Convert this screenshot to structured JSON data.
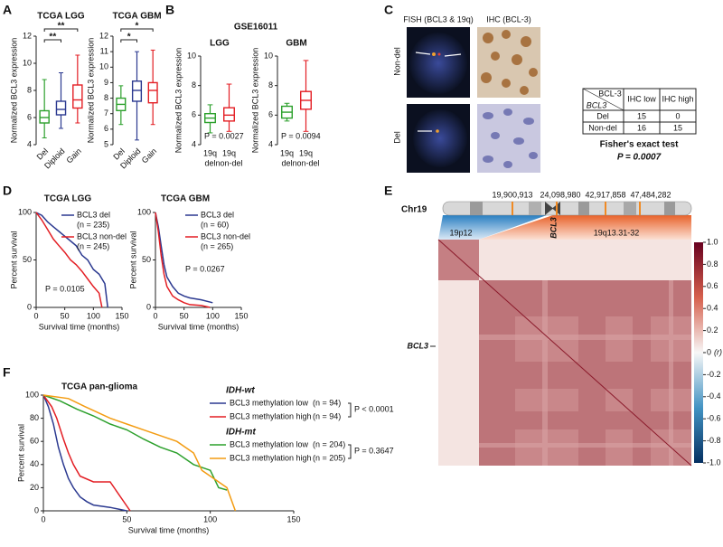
{
  "panel_a": {
    "letter": "A",
    "charts": [
      {
        "type": "box",
        "title": "TCGA LGG",
        "ylabel": "Normalized BCL3 expression",
        "ylim": [
          4,
          12
        ],
        "yticks": [
          4,
          6,
          8,
          10,
          12
        ],
        "categories": [
          "Del",
          "Diploid",
          "Gain"
        ],
        "colors": [
          "#2ca02c",
          "#2b3990",
          "#e31e24"
        ],
        "boxes": [
          {
            "min": 4.5,
            "q1": 5.6,
            "median": 6.0,
            "q3": 6.5,
            "max": 8.8
          },
          {
            "min": 5.2,
            "q1": 6.2,
            "median": 6.6,
            "q3": 7.2,
            "max": 9.3
          },
          {
            "min": 5.6,
            "q1": 6.7,
            "median": 7.3,
            "q3": 8.4,
            "max": 10.6
          }
        ],
        "significance": [
          "**",
          "**"
        ]
      },
      {
        "type": "box",
        "title": "TCGA GBM",
        "ylabel": "Normalized BCL3 expression",
        "ylim": [
          5,
          12
        ],
        "yticks": [
          5,
          6,
          7,
          8,
          9,
          10,
          11,
          12
        ],
        "categories": [
          "Del",
          "Diploid",
          "Gain"
        ],
        "colors": [
          "#2ca02c",
          "#2b3990",
          "#e31e24"
        ],
        "boxes": [
          {
            "min": 6.3,
            "q1": 7.2,
            "median": 7.6,
            "q3": 8.0,
            "max": 8.8
          },
          {
            "min": 5.3,
            "q1": 7.8,
            "median": 8.5,
            "q3": 9.1,
            "max": 11.0
          },
          {
            "min": 6.3,
            "q1": 7.7,
            "median": 8.5,
            "q3": 9.0,
            "max": 11.1
          }
        ],
        "significance": [
          "*",
          "*"
        ]
      }
    ]
  },
  "panel_b": {
    "letter": "B",
    "title": "GSE16011",
    "charts": [
      {
        "type": "box",
        "title": "LGG",
        "ylabel": "Normalized BCL3 expression",
        "ylim": [
          4,
          10
        ],
        "yticks": [
          4,
          6,
          8,
          10
        ],
        "categories": [
          [
            "19q",
            "del"
          ],
          [
            "19q",
            "non-del"
          ]
        ],
        "colors": [
          "#2ca02c",
          "#e31e24"
        ],
        "boxes": [
          {
            "min": 4.8,
            "q1": 5.5,
            "median": 5.8,
            "q3": 6.1,
            "max": 6.7
          },
          {
            "min": 4.9,
            "q1": 5.6,
            "median": 6.0,
            "q3": 6.5,
            "max": 8.1
          }
        ],
        "p_value": "P = 0.0027"
      },
      {
        "type": "box",
        "title": "GBM",
        "ylabel": "Normalized BCL3 expression",
        "ylim": [
          4,
          10
        ],
        "yticks": [
          4,
          6,
          8,
          10
        ],
        "categories": [
          [
            "19q",
            "del"
          ],
          [
            "19q",
            "non-del"
          ]
        ],
        "colors": [
          "#2ca02c",
          "#e31e24"
        ],
        "boxes": [
          {
            "min": 5.6,
            "q1": 5.8,
            "median": 6.2,
            "q3": 6.6,
            "max": 6.8
          },
          {
            "min": 4.9,
            "q1": 6.4,
            "median": 7.0,
            "q3": 7.6,
            "max": 9.7
          }
        ],
        "p_value": "P = 0.0094"
      }
    ]
  },
  "panel_c": {
    "letter": "C",
    "fish_label": "FISH (BCL3 & 19q)",
    "ihc_label": "IHC (BCL-3)",
    "row_labels": [
      "Non-del",
      "Del"
    ],
    "table": {
      "corner": [
        "BCL-3",
        "BCL3"
      ],
      "columns": [
        "IHC low",
        "IHC high"
      ],
      "rows": [
        {
          "label": "Del",
          "values": [
            15,
            0
          ]
        },
        {
          "label": "Non-del",
          "values": [
            16,
            15
          ]
        }
      ]
    },
    "test": "Fisher's exact test",
    "p_value": "P = 0.0007"
  },
  "panel_d": {
    "letter": "D",
    "charts": [
      {
        "type": "km",
        "title": "TCGA LGG",
        "ylabel": "Percent survival",
        "xlabel": "Survival time (months)",
        "xlim": [
          0,
          150
        ],
        "xticks": [
          0,
          50,
          100,
          150
        ],
        "ylim": [
          0,
          100
        ],
        "yticks": [
          0,
          50,
          100
        ],
        "p_value": "P = 0.0105",
        "series": [
          {
            "name": "BCL3 del",
            "n": "(n = 235)",
            "color": "#2b3990",
            "x": [
              0,
              10,
              20,
              30,
              40,
              50,
              60,
              70,
              80,
              90,
              100,
              110,
              120,
              125
            ],
            "values": [
              100,
              97,
              90,
              85,
              80,
              75,
              70,
              65,
              55,
              50,
              40,
              35,
              25,
              0
            ]
          },
          {
            "name": "BCL3 non-del",
            "n": "(n = 245)",
            "color": "#e31e24",
            "x": [
              0,
              10,
              20,
              30,
              40,
              50,
              60,
              70,
              80,
              90,
              100,
              110,
              115
            ],
            "values": [
              100,
              92,
              82,
              72,
              65,
              58,
              50,
              45,
              38,
              30,
              22,
              15,
              0
            ]
          }
        ]
      },
      {
        "type": "km",
        "title": "TCGA GBM",
        "ylabel": "Percent survival",
        "xlabel": "Survival time (months)",
        "xlim": [
          0,
          150
        ],
        "xticks": [
          0,
          50,
          100,
          150
        ],
        "ylim": [
          0,
          100
        ],
        "yticks": [
          0,
          50,
          100
        ],
        "p_value": "P = 0.0267",
        "series": [
          {
            "name": "BCL3 del",
            "n": "(n = 60)",
            "color": "#2b3990",
            "x": [
              0,
              5,
              10,
              15,
              20,
              30,
              40,
              50,
              60,
              80,
              100
            ],
            "values": [
              100,
              85,
              65,
              45,
              32,
              22,
              15,
              12,
              10,
              8,
              5
            ]
          },
          {
            "name": "BCL3 non-del",
            "n": "(n = 265)",
            "color": "#e31e24",
            "x": [
              0,
              5,
              10,
              15,
              20,
              30,
              40,
              50,
              60,
              80,
              95
            ],
            "values": [
              100,
              80,
              55,
              35,
              22,
              12,
              8,
              5,
              3,
              2,
              0
            ]
          }
        ]
      }
    ]
  },
  "panel_e": {
    "letter": "E",
    "chromosome": "Chr19",
    "positions": [
      "19,900,913",
      "24,098,980",
      "42,917,858",
      "47,484,282"
    ],
    "regions": [
      "19p12",
      "19q13.31-32"
    ],
    "gene": "BCL3",
    "row_label": "BCL3",
    "colorbar": {
      "label": "(r)",
      "ylim": [
        -1,
        1
      ],
      "ticks": [
        {
          "value": 1,
          "label": "1.0"
        },
        {
          "value": 0.8,
          "label": "0.8"
        },
        {
          "value": 0.6,
          "label": "0.6"
        },
        {
          "value": 0.4,
          "label": "0.4"
        },
        {
          "value": 0.2,
          "label": "0.2"
        },
        0,
        {
          "value": -0.2,
          "label": "-0.2"
        },
        {
          "value": -0.4,
          "label": "-0.4"
        },
        {
          "value": -0.6,
          "label": "-0.6"
        },
        {
          "value": -0.8,
          "label": "-0.8"
        },
        {
          "value": -1,
          "label": "-1.0"
        }
      ]
    }
  },
  "panel_f": {
    "letter": "F",
    "type": "km",
    "title": "TCGA pan-glioma",
    "ylabel": "Percent survival",
    "xlabel": "Survival time (months)",
    "xlim": [
      0,
      150
    ],
    "xticks": [
      0,
      50,
      100,
      150
    ],
    "ylim": [
      0,
      100
    ],
    "yticks": [
      0,
      20,
      40,
      60,
      80,
      100
    ],
    "groups": [
      {
        "name": "IDH-wt",
        "p_value": "P < 0.0001",
        "series": [
          {
            "name": "BCL3 methylation low",
            "n": "(n = 94)",
            "color": "#2b3990",
            "x": [
              0,
              3,
              6,
              9,
              12,
              15,
              18,
              22,
              26,
              30,
              40,
              50
            ],
            "values": [
              100,
              90,
              75,
              55,
              40,
              28,
              20,
              12,
              8,
              5,
              3,
              0
            ]
          },
          {
            "name": "BCL3 methylation high",
            "n": "(n = 94)",
            "color": "#e31e24",
            "x": [
              0,
              5,
              8,
              12,
              15,
              18,
              22,
              30,
              40,
              52
            ],
            "values": [
              100,
              90,
              80,
              62,
              50,
              40,
              30,
              25,
              25,
              0
            ]
          }
        ]
      },
      {
        "name": "IDH-mt",
        "p_value": "P = 0.3647",
        "series": [
          {
            "name": "BCL3 methylation low",
            "n": "(n = 204)",
            "color": "#2ca02c",
            "x": [
              0,
              10,
              20,
              30,
              40,
              50,
              60,
              70,
              80,
              90,
              100,
              105,
              110
            ],
            "values": [
              100,
              95,
              88,
              82,
              75,
              70,
              62,
              55,
              50,
              40,
              35,
              20,
              18
            ]
          },
          {
            "name": "BCL3 methylation high",
            "n": "(n = 205)",
            "color": "#f39c12",
            "x": [
              0,
              15,
              25,
              40,
              50,
              60,
              70,
              80,
              90,
              95,
              100,
              110,
              115
            ],
            "values": [
              100,
              97,
              90,
              80,
              75,
              70,
              65,
              60,
              50,
              35,
              30,
              20,
              0
            ]
          }
        ]
      }
    ]
  }
}
